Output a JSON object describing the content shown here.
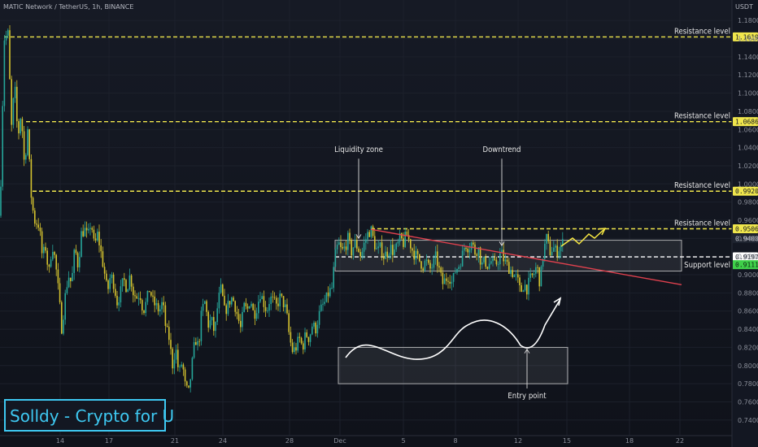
{
  "header": {
    "title": "MATIC Network / TetherUS, 1h, BINANCE",
    "currency": "USDT"
  },
  "watermark": "Solldy - Crypto for U",
  "colors": {
    "background": "#131722",
    "bull": "#26a69a",
    "bear": "#d4c22e",
    "resistance": "#f0e64c",
    "support": "#ffffff",
    "trendline": "#e0414e",
    "annotation": "#ffffff",
    "projection": "#f5e642",
    "watermark": "#3ec9f2",
    "price_badge": "#3fd04a"
  },
  "chart_data": {
    "type": "candlestick",
    "ylim": [
      0.73,
      1.19
    ],
    "y_ticks": [
      "1.1800",
      "1.1600",
      "1.1400",
      "1.1200",
      "1.1000",
      "1.0800",
      "1.0600",
      "1.0400",
      "1.0200",
      "1.0000",
      "0.9800",
      "0.9600",
      "0.9400",
      "0.9200",
      "0.9000",
      "0.8800",
      "0.8600",
      "0.8400",
      "0.8200",
      "0.8000",
      "0.7800",
      "0.7600",
      "0.7400"
    ],
    "x_ticks": [
      "14",
      "17",
      "21",
      "24",
      "28",
      "Dec",
      "5",
      "8",
      "12",
      "15",
      "18",
      "22"
    ],
    "price_path": [
      [
        0,
        0.965
      ],
      [
        5,
        1.16
      ],
      [
        10,
        1.165
      ],
      [
        14,
        1.06
      ],
      [
        18,
        1.11
      ],
      [
        22,
        1.05
      ],
      [
        26,
        1.08
      ],
      [
        30,
        1.02
      ],
      [
        34,
        1.06
      ],
      [
        38,
        0.99
      ],
      [
        42,
        0.96
      ],
      [
        48,
        0.955
      ],
      [
        52,
        0.92
      ],
      [
        56,
        0.93
      ],
      [
        60,
        0.9
      ],
      [
        64,
        0.935
      ],
      [
        68,
        0.915
      ],
      [
        72,
        0.88
      ],
      [
        76,
        0.84
      ],
      [
        80,
        0.875
      ],
      [
        84,
        0.9
      ],
      [
        88,
        0.89
      ],
      [
        92,
        0.93
      ],
      [
        96,
        0.91
      ],
      [
        100,
        0.945
      ],
      [
        104,
        0.95
      ],
      [
        108,
        0.94
      ],
      [
        112,
        0.96
      ],
      [
        116,
        0.93
      ],
      [
        120,
        0.945
      ],
      [
        124,
        0.925
      ],
      [
        128,
        0.905
      ],
      [
        132,
        0.88
      ],
      [
        136,
        0.9
      ],
      [
        140,
        0.89
      ],
      [
        144,
        0.87
      ],
      [
        148,
        0.88
      ],
      [
        152,
        0.895
      ],
      [
        156,
        0.885
      ],
      [
        160,
        0.9
      ],
      [
        164,
        0.88
      ],
      [
        168,
        0.875
      ],
      [
        172,
        0.88
      ],
      [
        176,
        0.86
      ],
      [
        180,
        0.87
      ],
      [
        184,
        0.885
      ],
      [
        188,
        0.87
      ],
      [
        192,
        0.865
      ],
      [
        196,
        0.86
      ],
      [
        200,
        0.87
      ],
      [
        204,
        0.84
      ],
      [
        208,
        0.83
      ],
      [
        212,
        0.8
      ],
      [
        216,
        0.82
      ],
      [
        220,
        0.79
      ],
      [
        224,
        0.805
      ],
      [
        228,
        0.775
      ],
      [
        232,
        0.77
      ],
      [
        236,
        0.8
      ],
      [
        240,
        0.83
      ],
      [
        244,
        0.82
      ],
      [
        248,
        0.86
      ],
      [
        252,
        0.87
      ],
      [
        256,
        0.845
      ],
      [
        260,
        0.85
      ],
      [
        264,
        0.835
      ],
      [
        268,
        0.87
      ],
      [
        272,
        0.885
      ],
      [
        276,
        0.86
      ],
      [
        280,
        0.865
      ],
      [
        284,
        0.875
      ],
      [
        288,
        0.87
      ],
      [
        292,
        0.855
      ],
      [
        296,
        0.84
      ],
      [
        300,
        0.865
      ],
      [
        304,
        0.86
      ],
      [
        308,
        0.875
      ],
      [
        312,
        0.855
      ],
      [
        316,
        0.865
      ],
      [
        320,
        0.88
      ],
      [
        324,
        0.87
      ],
      [
        328,
        0.86
      ],
      [
        332,
        0.875
      ],
      [
        336,
        0.87
      ],
      [
        340,
        0.865
      ],
      [
        344,
        0.875
      ],
      [
        348,
        0.87
      ],
      [
        352,
        0.86
      ],
      [
        356,
        0.83
      ],
      [
        360,
        0.815
      ],
      [
        364,
        0.82
      ],
      [
        368,
        0.83
      ],
      [
        372,
        0.82
      ],
      [
        376,
        0.835
      ],
      [
        380,
        0.83
      ],
      [
        384,
        0.845
      ],
      [
        388,
        0.84
      ],
      [
        392,
        0.855
      ],
      [
        396,
        0.865
      ],
      [
        400,
        0.87
      ],
      [
        404,
        0.88
      ],
      [
        408,
        0.885
      ],
      [
        412,
        0.92
      ],
      [
        416,
        0.935
      ],
      [
        420,
        0.925
      ],
      [
        424,
        0.93
      ],
      [
        428,
        0.94
      ],
      [
        432,
        0.925
      ],
      [
        436,
        0.935
      ],
      [
        440,
        0.93
      ],
      [
        444,
        0.92
      ],
      [
        448,
        0.935
      ],
      [
        452,
        0.945
      ],
      [
        456,
        0.95
      ],
      [
        460,
        0.935
      ],
      [
        464,
        0.925
      ],
      [
        468,
        0.93
      ],
      [
        472,
        0.92
      ],
      [
        476,
        0.925
      ],
      [
        480,
        0.93
      ],
      [
        484,
        0.925
      ],
      [
        488,
        0.93
      ],
      [
        492,
        0.94
      ],
      [
        496,
        0.935
      ],
      [
        500,
        0.945
      ],
      [
        504,
        0.935
      ],
      [
        508,
        0.925
      ],
      [
        512,
        0.92
      ],
      [
        516,
        0.915
      ],
      [
        520,
        0.91
      ],
      [
        524,
        0.915
      ],
      [
        528,
        0.905
      ],
      [
        532,
        0.91
      ],
      [
        536,
        0.92
      ],
      [
        540,
        0.905
      ],
      [
        544,
        0.89
      ],
      [
        548,
        0.895
      ],
      [
        552,
        0.9
      ],
      [
        556,
        0.89
      ],
      [
        560,
        0.905
      ],
      [
        564,
        0.91
      ],
      [
        568,
        0.92
      ],
      [
        572,
        0.935
      ],
      [
        576,
        0.93
      ],
      [
        580,
        0.935
      ],
      [
        584,
        0.925
      ],
      [
        588,
        0.93
      ],
      [
        592,
        0.91
      ],
      [
        596,
        0.915
      ],
      [
        600,
        0.91
      ],
      [
        604,
        0.915
      ],
      [
        608,
        0.91
      ],
      [
        612,
        0.915
      ],
      [
        616,
        0.925
      ],
      [
        620,
        0.915
      ],
      [
        624,
        0.91
      ],
      [
        628,
        0.905
      ],
      [
        632,
        0.9
      ],
      [
        636,
        0.895
      ],
      [
        640,
        0.88
      ],
      [
        644,
        0.89
      ],
      [
        648,
        0.885
      ],
      [
        652,
        0.895
      ],
      [
        656,
        0.9
      ],
      [
        660,
        0.91
      ],
      [
        664,
        0.89
      ],
      [
        668,
        0.925
      ],
      [
        672,
        0.94
      ],
      [
        676,
        0.925
      ],
      [
        680,
        0.93
      ],
      [
        684,
        0.925
      ],
      [
        688,
        0.93
      ],
      [
        692,
        0.935
      ],
      [
        696,
        0.94
      ]
    ],
    "levels": [
      {
        "label": "Resistance level",
        "value": 1.1619,
        "value_text": "1.1619",
        "x_start_day": 5
      },
      {
        "label": "Resistance level",
        "value": 1.0686,
        "value_text": "1.0686",
        "x_start_day": 32
      },
      {
        "label": "Resistance level",
        "value": 0.992,
        "value_text": "0.9920",
        "x_start_day": 40
      },
      {
        "label": "Resistance level",
        "value": 0.9506,
        "value_text": "0.9506",
        "x_start_day": 456
      },
      {
        "label": "Support level",
        "value": 0.9197,
        "value_text": "0.9197",
        "x_start_day": 412
      }
    ],
    "current_price": {
      "value": 0.9111,
      "value_text": "0.9111"
    },
    "extra_tick": {
      "value": 0.94,
      "value_text": "0.9400"
    },
    "zones": [
      {
        "x0": 412,
        "x1": 838,
        "y0": 0.904,
        "y1": 0.938
      },
      {
        "x0": 416,
        "x1": 698,
        "y0": 0.78,
        "y1": 0.82
      }
    ],
    "trendline": {
      "x0": 456,
      "y0": 0.95,
      "x1": 838,
      "y1": 0.889
    },
    "annotations": [
      {
        "text": "Liquidity zone",
        "x": 441,
        "y_text": 1.035,
        "arrow_to": 0.94
      },
      {
        "text": "Downtrend",
        "x": 617,
        "y_text": 1.035,
        "arrow_to": 0.932
      },
      {
        "text": "Entry point",
        "x": 648,
        "y_text": 0.764,
        "arrow_to": 0.818
      }
    ]
  }
}
